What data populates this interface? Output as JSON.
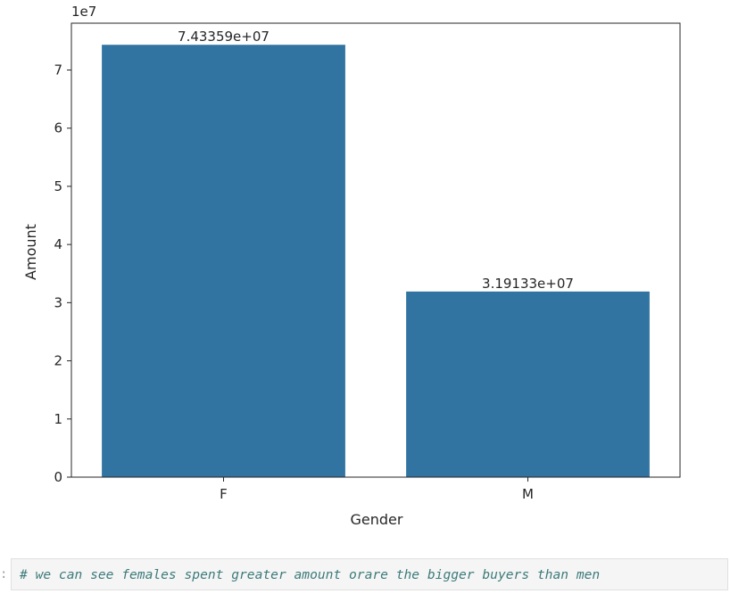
{
  "chart_data": {
    "type": "bar",
    "categories": [
      "F",
      "M"
    ],
    "values": [
      74335900,
      31913300
    ],
    "data_labels": [
      "7.43359e+07",
      "3.19133e+07"
    ],
    "xlabel": "Gender",
    "ylabel": "Amount",
    "y_offset_text": "1e7",
    "y_ticks": [
      0,
      1,
      2,
      3,
      4,
      5,
      6,
      7
    ],
    "y_tick_scale": 10000000,
    "ylim": [
      0,
      78050000
    ],
    "bar_color": "#3274a1",
    "grid": false,
    "legend": "none"
  },
  "notebook": {
    "prompt": ":",
    "comment": "# we can see females spent greater amount orare the bigger buyers than men"
  }
}
